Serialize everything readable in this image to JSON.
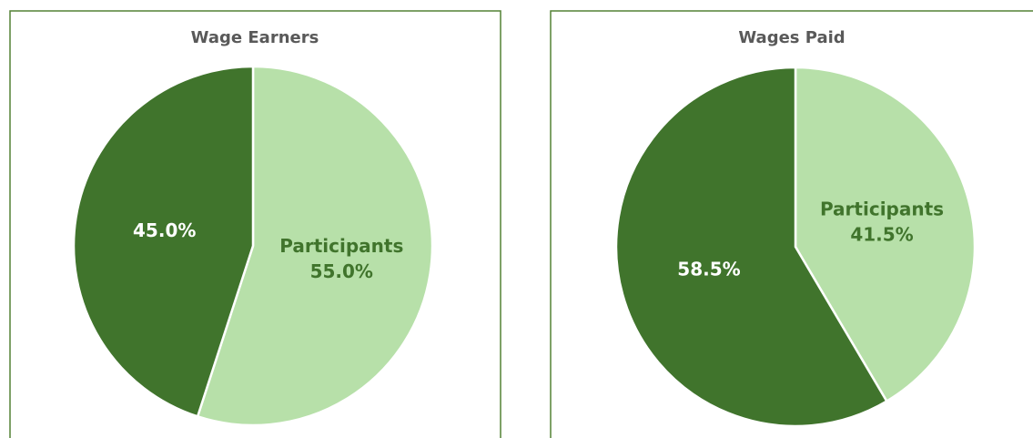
{
  "chart_data": [
    {
      "type": "pie",
      "title": "Wage Earners",
      "categories": [
        "Participants",
        null
      ],
      "values": [
        55.0,
        45.0
      ],
      "value_labels": [
        "55.0%",
        "45.0%"
      ],
      "colors": [
        "#b7e0a9",
        "#40742c"
      ]
    },
    {
      "type": "pie",
      "title": "Wages Paid",
      "categories": [
        "Participants",
        null
      ],
      "values": [
        41.5,
        58.5
      ],
      "value_labels": [
        "41.5%",
        "58.5%"
      ],
      "colors": [
        "#b7e0a9",
        "#40742c"
      ]
    }
  ]
}
